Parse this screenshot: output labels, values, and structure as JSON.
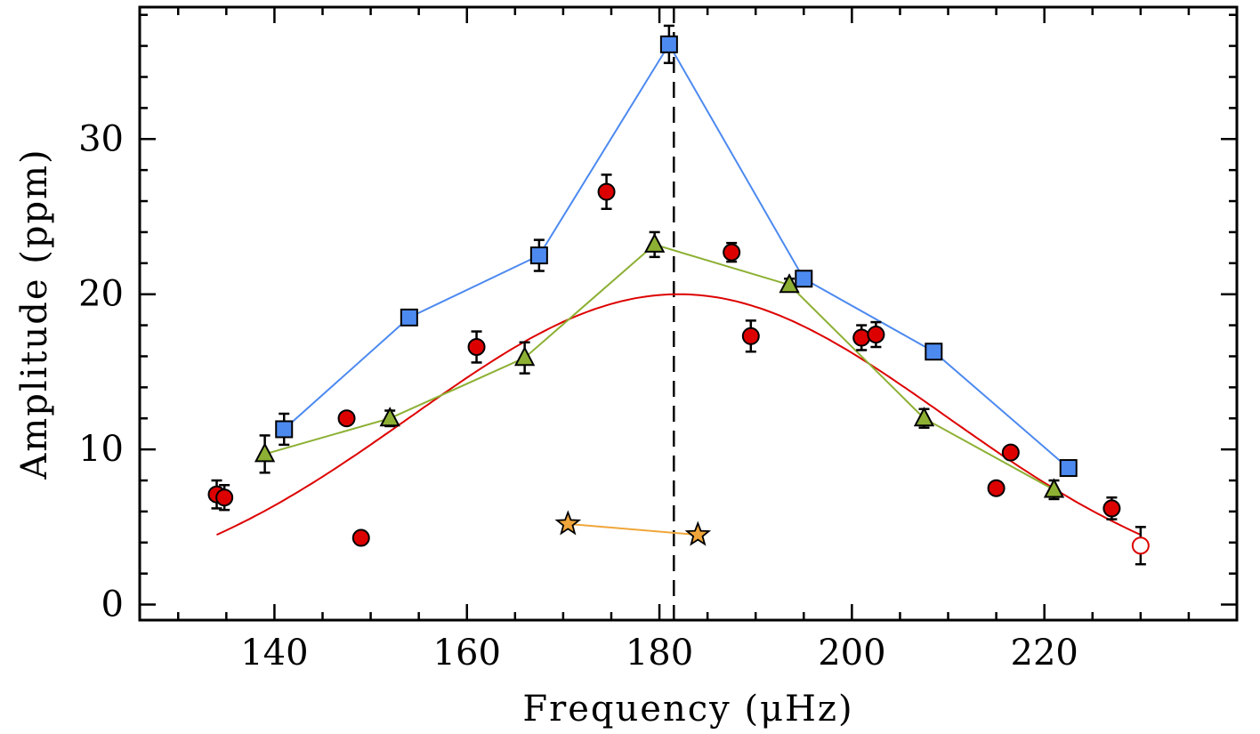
{
  "chart_data": {
    "type": "scatter",
    "title": "",
    "xlabel": "Frequency (μHz)",
    "ylabel": "Amplitude (ppm)",
    "xlim": [
      126,
      240
    ],
    "ylim": [
      -1,
      38.5
    ],
    "x_ticks": [
      140,
      160,
      180,
      200,
      220
    ],
    "y_ticks": [
      0,
      10,
      20,
      30
    ],
    "grid": false,
    "legend": "none",
    "vertical_reference_line": {
      "x": 181.5,
      "style": "dashed",
      "color": "#000000"
    },
    "series": [
      {
        "marker": "square",
        "color": "#4d8af0",
        "connected": true,
        "points": [
          {
            "x": 141.0,
            "y": 11.3,
            "err": 1.0
          },
          {
            "x": 154.0,
            "y": 18.5,
            "err": 0.4
          },
          {
            "x": 167.5,
            "y": 22.5,
            "err": 1.0
          },
          {
            "x": 181.0,
            "y": 36.1,
            "err": 1.2
          },
          {
            "x": 195.0,
            "y": 21.0,
            "err": 0.4
          },
          {
            "x": 208.5,
            "y": 16.3,
            "err": 0.3
          },
          {
            "x": 222.5,
            "y": 8.8,
            "err": 0.3
          }
        ]
      },
      {
        "marker": "triangle",
        "color": "#8db034",
        "connected": true,
        "points": [
          {
            "x": 139.0,
            "y": 9.7,
            "err": 1.2
          },
          {
            "x": 152.0,
            "y": 12.0,
            "err": 0.5
          },
          {
            "x": 166.0,
            "y": 15.9,
            "err": 1.0
          },
          {
            "x": 179.5,
            "y": 23.2,
            "err": 0.8
          },
          {
            "x": 193.5,
            "y": 20.6,
            "err": 0.4
          },
          {
            "x": 207.5,
            "y": 12.0,
            "err": 0.6
          },
          {
            "x": 221.0,
            "y": 7.4,
            "err": 0.6
          }
        ]
      },
      {
        "marker": "star",
        "color": "#f0a63a",
        "connected": true,
        "points": [
          {
            "x": 170.5,
            "y": 5.2
          },
          {
            "x": 184.0,
            "y": 4.5
          }
        ]
      },
      {
        "marker": "circle",
        "color": "#dd0000",
        "connected": false,
        "points": [
          {
            "x": 134.0,
            "y": 7.1,
            "err": 0.9
          },
          {
            "x": 134.8,
            "y": 6.9,
            "err": 0.8
          },
          {
            "x": 147.5,
            "y": 12.0,
            "err": 0.4
          },
          {
            "x": 149.0,
            "y": 4.3
          },
          {
            "x": 161.0,
            "y": 16.6,
            "err": 1.0
          },
          {
            "x": 174.5,
            "y": 26.6,
            "err": 1.1
          },
          {
            "x": 187.5,
            "y": 22.7,
            "err": 0.6
          },
          {
            "x": 189.5,
            "y": 17.3,
            "err": 1.0
          },
          {
            "x": 201.0,
            "y": 17.2,
            "err": 0.8
          },
          {
            "x": 202.5,
            "y": 17.4,
            "err": 0.8
          },
          {
            "x": 215.0,
            "y": 7.5
          },
          {
            "x": 216.5,
            "y": 9.8
          },
          {
            "x": 227.0,
            "y": 6.2,
            "err": 0.7
          }
        ]
      },
      {
        "marker": "open-circle",
        "color": "#dd0000",
        "connected": false,
        "points": [
          {
            "x": 230.0,
            "y": 3.8,
            "err": 1.2
          }
        ]
      },
      {
        "type": "line",
        "color": "#dd0000",
        "description_fit": "gaussian",
        "peak": {
          "x": 182.0,
          "y": 20.0
        },
        "range": [
          134.0,
          230.0
        ],
        "end_values": {
          "x134": 4.5,
          "x230": 2.0
        }
      }
    ]
  }
}
